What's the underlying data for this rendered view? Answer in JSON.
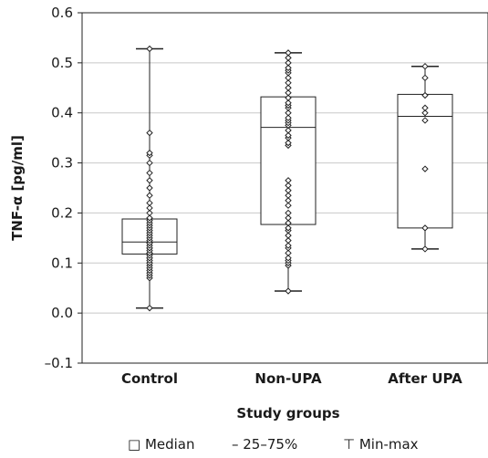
{
  "chart_data": {
    "type": "box",
    "xlabel": "Study groups",
    "ylabel": "TNF-α [pg/ml]",
    "ylim": [
      -0.1,
      0.6
    ],
    "yticks": [
      -0.1,
      0.0,
      0.1,
      0.2,
      0.3,
      0.4,
      0.5,
      0.6
    ],
    "ytick_labels": [
      "–0.1",
      "0.0",
      "0.1",
      "0.2",
      "0.3",
      "0.4",
      "0.5",
      "0.6"
    ],
    "grid": "horizontal",
    "categories": [
      "Control",
      "Non-UPA",
      "After UPA"
    ],
    "boxes": [
      {
        "name": "Control",
        "min": 0.01,
        "q1": 0.118,
        "median": 0.142,
        "q3": 0.188,
        "max": 0.528,
        "points": [
          0.01,
          0.07,
          0.075,
          0.08,
          0.085,
          0.09,
          0.095,
          0.1,
          0.1,
          0.105,
          0.11,
          0.11,
          0.115,
          0.12,
          0.12,
          0.125,
          0.13,
          0.13,
          0.135,
          0.14,
          0.14,
          0.145,
          0.15,
          0.155,
          0.16,
          0.165,
          0.17,
          0.175,
          0.18,
          0.185,
          0.19,
          0.2,
          0.21,
          0.22,
          0.235,
          0.25,
          0.265,
          0.28,
          0.3,
          0.315,
          0.32,
          0.36,
          0.528
        ]
      },
      {
        "name": "Non-UPA",
        "min": 0.044,
        "q1": 0.177,
        "median": 0.371,
        "q3": 0.432,
        "max": 0.52,
        "points": [
          0.044,
          0.095,
          0.1,
          0.105,
          0.11,
          0.12,
          0.13,
          0.135,
          0.145,
          0.155,
          0.165,
          0.17,
          0.18,
          0.19,
          0.2,
          0.215,
          0.225,
          0.235,
          0.245,
          0.255,
          0.265,
          0.335,
          0.34,
          0.35,
          0.355,
          0.365,
          0.375,
          0.38,
          0.385,
          0.39,
          0.4,
          0.41,
          0.415,
          0.42,
          0.43,
          0.44,
          0.45,
          0.46,
          0.47,
          0.48,
          0.485,
          0.49,
          0.5,
          0.51,
          0.52
        ]
      },
      {
        "name": "After UPA",
        "min": 0.128,
        "q1": 0.17,
        "median": 0.393,
        "q3": 0.437,
        "max": 0.493,
        "points": [
          0.128,
          0.17,
          0.288,
          0.385,
          0.4,
          0.41,
          0.435,
          0.47,
          0.493
        ]
      }
    ],
    "legend": {
      "position": "bottom",
      "items": [
        {
          "symbol": "□",
          "label": "Median"
        },
        {
          "symbol": "–",
          "label": "25–75%"
        },
        {
          "symbol": "⊤",
          "label": "Min-max"
        }
      ]
    }
  }
}
